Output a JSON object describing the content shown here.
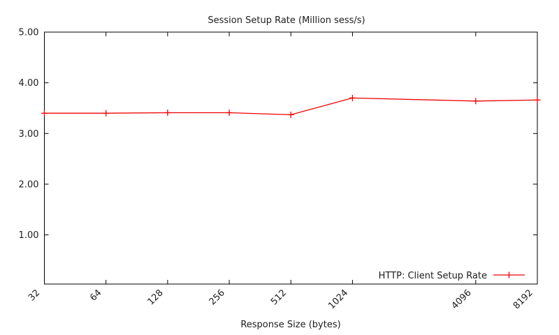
{
  "chart_data": {
    "type": "line",
    "title": "Session Setup Rate (Million sess/s)",
    "xlabel": "Response Size (bytes)",
    "ylabel": "",
    "x_scale": "log2",
    "x_values": [
      32,
      64,
      128,
      256,
      512,
      1024,
      4096,
      8192
    ],
    "xtick_labels": [
      "32",
      "64",
      "128",
      "256",
      "512",
      "1024",
      "4096",
      "8192"
    ],
    "xlim_log2": [
      5,
      13
    ],
    "ytick_values": [
      1,
      2,
      3,
      4,
      5
    ],
    "ytick_labels": [
      "1.00",
      "2.00",
      "3.00",
      "4.00",
      "5.00"
    ],
    "ylim": [
      0.03,
      5.0
    ],
    "grid": false,
    "legend_position": "bottom-right-inside",
    "axis_color": "#000000",
    "text_color": "#1c1c1c",
    "background": "#ffffff",
    "series": [
      {
        "name": "HTTP: Client Setup Rate",
        "color": "#ee0000",
        "marker": "plus",
        "values": [
          3.4,
          3.4,
          3.41,
          3.41,
          3.37,
          3.7,
          3.64,
          3.66
        ]
      }
    ]
  }
}
